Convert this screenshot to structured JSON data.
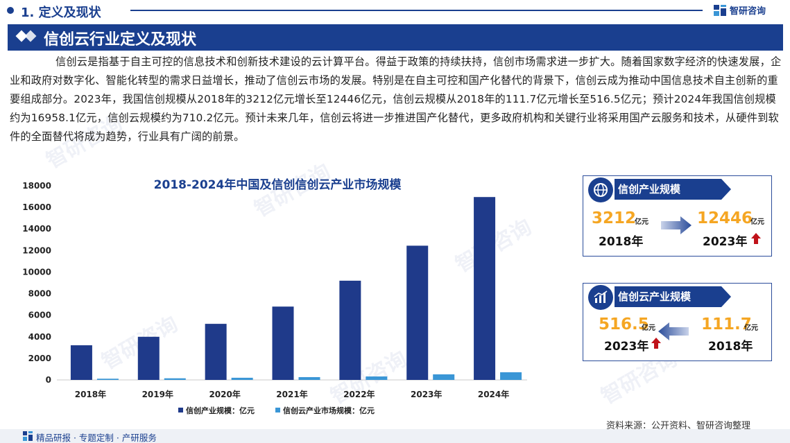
{
  "header": {
    "section_title": "1. 定义及现状",
    "brand": "智研咨询"
  },
  "banner": {
    "title": "信创云行业定义及现状"
  },
  "intro": {
    "text": "信创云是指基于自主可控的信息技术和创新技术建设的云计算平台。得益于政策的持续扶持，信创市场需求进一步扩大。随着国家数字经济的快速发展，企业和政府对数字化、智能化转型的需求日益增长，推动了信创云市场的发展。特别是在自主可控和国产化替代的背景下，信创云成为推动中国信息技术自主创新的重要组成部分。2023年，我国信创规模从2018年的3212亿元增长至12446亿元，信创云规模从2018年的111.7亿元增长至516.5亿元；预计2024年我国信创规模约为16958.1亿元，信创云规模约为710.2亿元。预计未来几年，信创云将进一步推进国产化替代，更多政府机构和关键行业将采用国产云服务和技术，从硬件到软件的全面替代将成为趋势，行业具有广阔的前景。"
  },
  "chart_data": {
    "type": "bar",
    "title": "2018-2024年中国及信创信创云产业市场规模",
    "categories": [
      "2018年",
      "2019年",
      "2020年",
      "2021年",
      "2022年",
      "2023年",
      "2024年"
    ],
    "series": [
      {
        "name": "信创产业规模：亿元",
        "color": "#1f3a8a",
        "values": [
          3212,
          4000,
          5200,
          6800,
          9200,
          12446,
          16958.1
        ]
      },
      {
        "name": "信创云产业市场规模：亿元",
        "color": "#3a96d6",
        "values": [
          111.7,
          150,
          200,
          260,
          320,
          516.5,
          710.2
        ]
      }
    ],
    "ylim": [
      0,
      18000
    ],
    "yticks": [
      0,
      2000,
      4000,
      6000,
      8000,
      10000,
      12000,
      14000,
      16000,
      18000
    ],
    "legend_position": "bottom",
    "grid": false
  },
  "cards": {
    "industry": {
      "title": "信创产业规模",
      "from_value": "3212",
      "from_unit": "亿元",
      "from_year": "2018年",
      "to_value": "12446",
      "to_unit": "亿元",
      "to_year": "2023年"
    },
    "cloud": {
      "title": "信创云产业规模",
      "left_value": "516.5",
      "left_unit": "亿元",
      "left_year": "2023年",
      "right_value": "111.7",
      "right_unit": "亿元",
      "right_year": "2018年"
    }
  },
  "source": "资料来源：公开资料、智研咨询整理",
  "footer": {
    "text": "精品研报 · 专题定制 · 产研服务"
  },
  "colors": {
    "brand_blue": "#1a3f8f",
    "accent_orange": "#f5a623",
    "arrow_red": "#c0121a"
  }
}
